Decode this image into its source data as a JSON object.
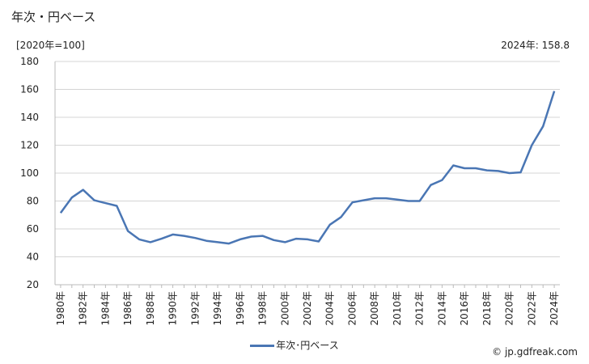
{
  "title": "年次・円ベース",
  "unit_label": "[2020年=100]",
  "latest_label": "2024年: 158.8",
  "legend_label": "年次･円ベース",
  "credit": "© jp.gdfreak.com",
  "chart_data": {
    "type": "line",
    "ylim": [
      20,
      180
    ],
    "yticks": [
      20,
      40,
      60,
      80,
      100,
      120,
      140,
      160,
      180
    ],
    "x": [
      1980,
      1981,
      1982,
      1983,
      1984,
      1985,
      1986,
      1987,
      1988,
      1989,
      1990,
      1991,
      1992,
      1993,
      1994,
      1995,
      1996,
      1997,
      1998,
      1999,
      2000,
      2001,
      2002,
      2003,
      2004,
      2005,
      2006,
      2007,
      2008,
      2009,
      2010,
      2011,
      2012,
      2013,
      2014,
      2015,
      2016,
      2017,
      2018,
      2019,
      2020,
      2021,
      2022,
      2023,
      2024
    ],
    "xtick_labels": [
      "1980年",
      "1982年",
      "1984年",
      "1986年",
      "1988年",
      "1990年",
      "1992年",
      "1994年",
      "1996年",
      "1998年",
      "2000年",
      "2002年",
      "2004年",
      "2006年",
      "2008年",
      "2010年",
      "2012年",
      "2014年",
      "2016年",
      "2018年",
      "2020年",
      "2022年",
      "2024年"
    ],
    "series": [
      {
        "name": "年次･円ベース",
        "color": "#4a76b4",
        "values": [
          71.5,
          82.5,
          88,
          80.5,
          78.5,
          76.5,
          58.5,
          52.5,
          50.5,
          53,
          56,
          55,
          53.5,
          51.5,
          50.5,
          49.5,
          52.5,
          54.5,
          55,
          52,
          50.5,
          53,
          52.5,
          51,
          63,
          68.5,
          79,
          80.5,
          82,
          82,
          81,
          80,
          80,
          91.5,
          95,
          105.5,
          103.5,
          103.5,
          102,
          101.5,
          100,
          100.5,
          120,
          133.5,
          158.8
        ]
      }
    ],
    "grid": true
  }
}
